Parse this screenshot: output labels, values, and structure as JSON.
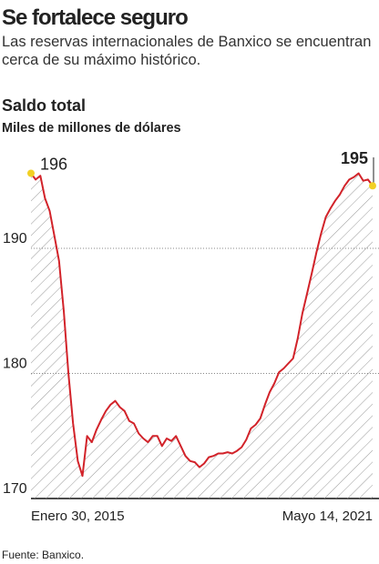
{
  "title": "Se fortalece seguro",
  "subtitle": "Las reservas internacionales de Banxico se encuentran cerca de su máximo histórico.",
  "chart_data": {
    "type": "line",
    "title": "Saldo total",
    "subtitle": "Miles de millones de dólares",
    "categories": [
      "Enero 30, 2015",
      null,
      null,
      null,
      null,
      null,
      null,
      null,
      null,
      null,
      null,
      null,
      null,
      null,
      null,
      null,
      null,
      null,
      null,
      null,
      null,
      null,
      null,
      null,
      null,
      null,
      null,
      null,
      null,
      null,
      null,
      null,
      null,
      null,
      null,
      null,
      null,
      null,
      null,
      null,
      null,
      null,
      null,
      null,
      null,
      null,
      null,
      null,
      null,
      null,
      null,
      null,
      null,
      null,
      null,
      null,
      null,
      null,
      null,
      null,
      null,
      null,
      null,
      null,
      null,
      null,
      null,
      null,
      null,
      null,
      null,
      null,
      null,
      "Mayo 14, 2021"
    ],
    "series": [
      {
        "name": "Saldo total",
        "color": "#d2232a",
        "values": [
          196,
          195.5,
          195.8,
          194,
          193,
          191,
          189,
          185,
          180,
          176,
          173,
          171.8,
          175,
          174.5,
          175.5,
          176.3,
          177,
          177.5,
          177.8,
          177.3,
          177,
          176.2,
          176,
          175.2,
          174.8,
          174.5,
          175,
          175,
          174.2,
          174.8,
          174.6,
          175,
          174.2,
          173.4,
          173,
          172.9,
          172.5,
          172.8,
          173.3,
          173.4,
          173.6,
          173.6,
          173.7,
          173.6,
          173.8,
          174.1,
          174.7,
          175.6,
          175.9,
          176.4,
          177.5,
          178.5,
          179.2,
          180.1,
          180.4,
          180.8,
          181.2,
          182.8,
          184.8,
          186.4,
          188,
          189.7,
          191.2,
          192.5,
          193.2,
          193.8,
          194.3,
          195,
          195.5,
          195.7,
          196,
          195.4,
          195.5,
          195
        ]
      }
    ],
    "ylim": [
      170,
      197
    ],
    "yticks": [
      170,
      180,
      190
    ],
    "grid": true
  },
  "source": "Fuente: Banxico."
}
